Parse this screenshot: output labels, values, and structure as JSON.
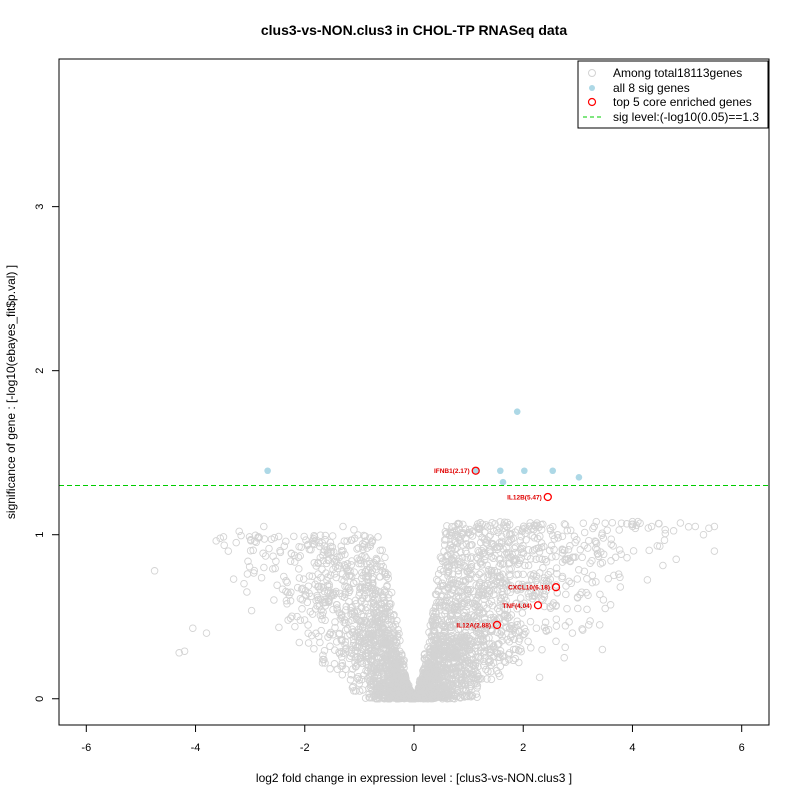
{
  "chart_data": {
    "type": "scatter",
    "title": "clus3-vs-NON.clus3 in CHOL-TP RNASeq data",
    "xlabel": "log2 fold change in expression level : [clus3-vs-NON.clus3 ]",
    "ylabel": "significance of gene : [-log10(ebayes_fit$p.val) ]",
    "xlim": [
      -6.5,
      6.5
    ],
    "ylim": [
      -0.16,
      3.9
    ],
    "x_ticks": [
      "-6",
      "-4",
      "-2",
      "0",
      "2",
      "4",
      "6"
    ],
    "x_tick_values": [
      -6,
      -4,
      -2,
      0,
      2,
      4,
      6
    ],
    "y_ticks": [
      "0",
      "1",
      "2",
      "3"
    ],
    "y_tick_values": [
      0,
      1,
      2,
      3
    ],
    "sig_level": 1.3,
    "colors": {
      "background_points": "#d3d3d3",
      "sig_points": "#add8e6",
      "core_genes": "#ff0000",
      "sig_line": "#00cc00"
    },
    "legend": {
      "position": "top-right",
      "entries": [
        "Among total18113genes",
        "all 8 sig genes",
        "top 5 core enriched genes",
        "sig level:(-log10(0.05)==1.3"
      ]
    },
    "sig_genes": [
      {
        "x": -2.68,
        "y": 1.39
      },
      {
        "x": 1.13,
        "y": 1.39
      },
      {
        "x": 1.58,
        "y": 1.39
      },
      {
        "x": 1.63,
        "y": 1.32
      },
      {
        "x": 1.89,
        "y": 1.75
      },
      {
        "x": 2.02,
        "y": 1.39
      },
      {
        "x": 2.54,
        "y": 1.39
      },
      {
        "x": 3.02,
        "y": 1.35
      }
    ],
    "core_genes": [
      {
        "label": "IFNB1(2.17)",
        "x": 1.13,
        "y": 1.39
      },
      {
        "label": "IL12B(5.47)",
        "x": 2.45,
        "y": 1.23
      },
      {
        "label": "CXCL10(6.18)",
        "x": 2.6,
        "y": 0.68
      },
      {
        "label": "TNF(4.04)",
        "x": 2.27,
        "y": 0.57
      },
      {
        "label": "IL12A(2.88)",
        "x": 1.52,
        "y": 0.45
      }
    ],
    "background_sample": [
      {
        "x": -4.75,
        "y": 0.78
      },
      {
        "x": -4.3,
        "y": 0.28
      },
      {
        "x": -4.2,
        "y": 0.29
      },
      {
        "x": -4.05,
        "y": 0.43
      },
      {
        "x": -3.8,
        "y": 0.4
      },
      {
        "x": -3.4,
        "y": 0.9
      },
      {
        "x": -3.2,
        "y": 1.02
      },
      {
        "x": -2.75,
        "y": 1.05
      },
      {
        "x": -2.2,
        "y": 0.99
      },
      {
        "x": -1.3,
        "y": 1.05
      },
      {
        "x": -1.1,
        "y": 1.03
      },
      {
        "x": -0.8,
        "y": 0.98
      },
      {
        "x": -0.6,
        "y": 0.82
      },
      {
        "x": 1.5,
        "y": 1.23
      },
      {
        "x": 1.85,
        "y": 1.14
      },
      {
        "x": 2.6,
        "y": 1.23
      },
      {
        "x": 3.1,
        "y": 1.07
      },
      {
        "x": 3.3,
        "y": 1.05
      },
      {
        "x": 3.5,
        "y": 1.07
      },
      {
        "x": 3.8,
        "y": 1.07
      },
      {
        "x": 4.0,
        "y": 1.08
      },
      {
        "x": 4.1,
        "y": 1.08
      },
      {
        "x": 4.35,
        "y": 1.05
      },
      {
        "x": 4.6,
        "y": 1.03
      },
      {
        "x": 4.85,
        "y": 1.23
      },
      {
        "x": 5.15,
        "y": 1.05
      },
      {
        "x": 5.4,
        "y": 1.04
      },
      {
        "x": 5.5,
        "y": 1.05
      },
      {
        "x": 5.5,
        "y": 0.9
      },
      {
        "x": 5.3,
        "y": 1.0
      },
      {
        "x": 4.8,
        "y": 0.85
      },
      {
        "x": 4.5,
        "y": 0.93
      },
      {
        "x": 3.9,
        "y": 0.86
      },
      {
        "x": 3.5,
        "y": 0.55
      },
      {
        "x": 3.4,
        "y": 0.45
      },
      {
        "x": 3.45,
        "y": 0.3
      },
      {
        "x": 3.2,
        "y": 0.45
      },
      {
        "x": 3.0,
        "y": 0.55
      },
      {
        "x": 2.9,
        "y": 0.4
      },
      {
        "x": 2.75,
        "y": 0.25
      },
      {
        "x": 2.6,
        "y": 0.35
      },
      {
        "x": 2.3,
        "y": 0.13
      }
    ]
  }
}
